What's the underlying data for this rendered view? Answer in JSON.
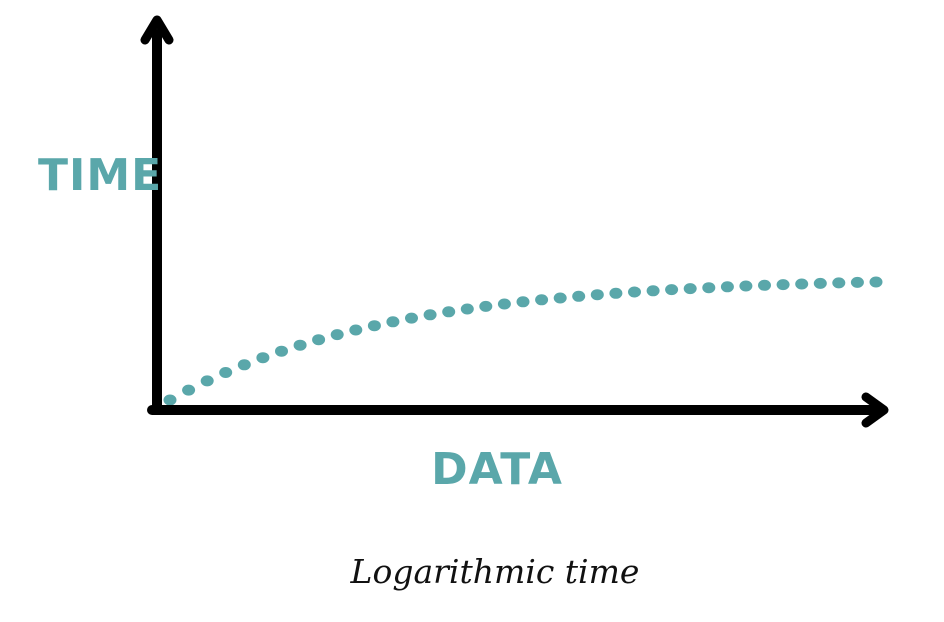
{
  "chart_data": {
    "type": "line",
    "style": "dotted",
    "ylabel": "TIME",
    "xlabel": "DATA",
    "caption": "Logarithmic time",
    "curve": "logarithmic",
    "grid": false,
    "legend": "none",
    "ticks": false,
    "axis_arrows": true
  },
  "colors": {
    "series": "#5aa7aa",
    "axis": "#000000",
    "label": "#5aa7aa",
    "caption": "#111111"
  }
}
